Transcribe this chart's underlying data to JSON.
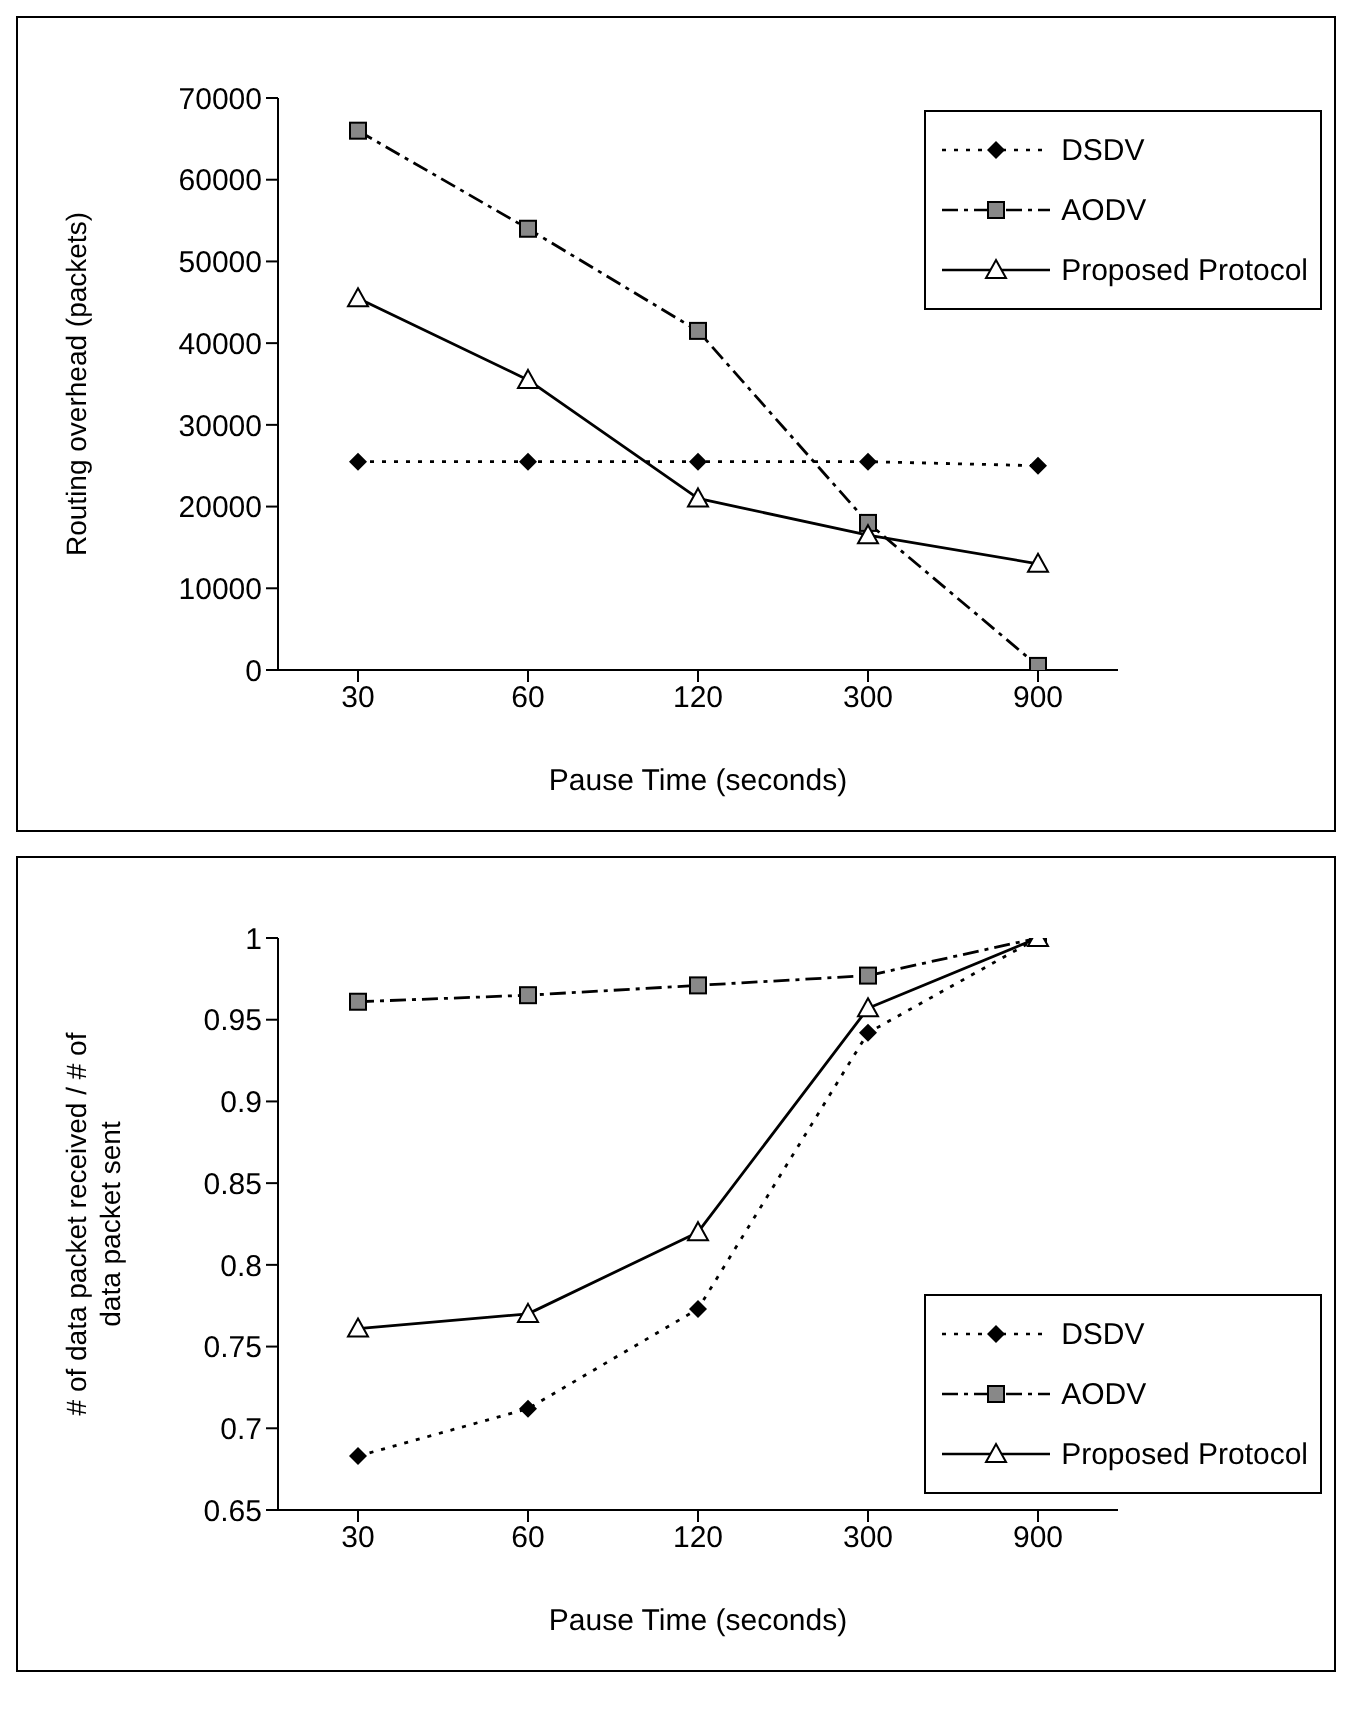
{
  "chart_data": [
    {
      "type": "line",
      "categories": [
        "30",
        "60",
        "120",
        "300",
        "900"
      ],
      "xlabel": "Pause Time (seconds)",
      "ylabel": "Routing overhead (packets)",
      "ylim": [
        0,
        70000
      ],
      "yticks": [
        0,
        10000,
        20000,
        30000,
        40000,
        50000,
        60000,
        70000
      ],
      "grid": false,
      "legend": "top right",
      "series": [
        {
          "name": "DSDV",
          "color": "#000000",
          "marker": "diamond",
          "line_style": "dotted",
          "values": [
            25500,
            25500,
            25500,
            25500,
            25000
          ]
        },
        {
          "name": "AODV",
          "color": "#000000",
          "marker": "square",
          "line_style": "dashed",
          "values": [
            66000,
            54000,
            41500,
            18000,
            500
          ]
        },
        {
          "name": "Proposed Protocol",
          "color": "#000000",
          "marker": "triangle",
          "line_style": "solid",
          "values": [
            45500,
            35500,
            21000,
            16500,
            13000
          ]
        }
      ]
    },
    {
      "type": "line",
      "categories": [
        "30",
        "60",
        "120",
        "300",
        "900"
      ],
      "xlabel": "Pause Time (seconds)",
      "ylabel": "# of data packet received / # of data packet sent",
      "ylim": [
        0.65,
        1
      ],
      "yticks": [
        0.65,
        0.7,
        0.75,
        0.8,
        0.85,
        0.9,
        0.95,
        1
      ],
      "grid": false,
      "legend": "bottom right",
      "series": [
        {
          "name": "DSDV",
          "color": "#000000",
          "marker": "diamond",
          "line_style": "dotted",
          "values": [
            0.683,
            0.712,
            0.773,
            0.942,
            1.0
          ]
        },
        {
          "name": "AODV",
          "color": "#000000",
          "marker": "square",
          "line_style": "dashed",
          "values": [
            0.961,
            0.965,
            0.971,
            0.977,
            1.0
          ]
        },
        {
          "name": "Proposed Protocol",
          "color": "#000000",
          "marker": "triangle",
          "line_style": "solid",
          "values": [
            0.761,
            0.77,
            0.82,
            0.957,
            1.0
          ]
        }
      ]
    }
  ]
}
